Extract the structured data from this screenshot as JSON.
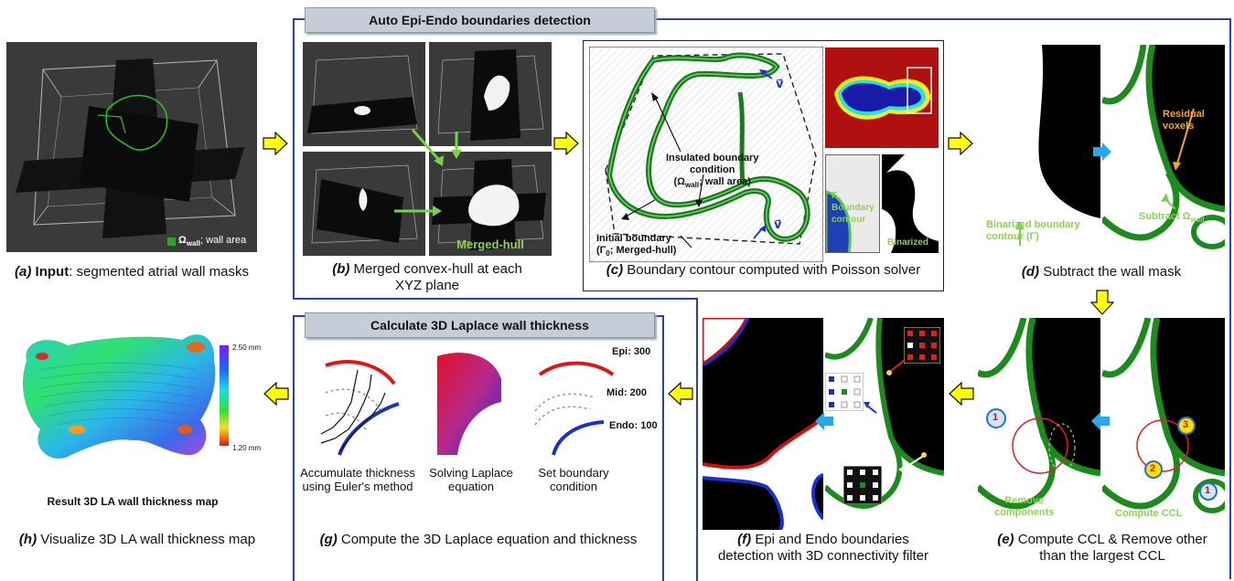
{
  "panel_a": {
    "caption_letter": "(a)",
    "caption_bold": "Input",
    "caption_rest": ": segmented atrial wall masks",
    "legend": "Ω",
    "legend_sub": "wall",
    "legend_rest": "; wall area"
  },
  "banner_top": "Auto Epi-Endo boundaries detection",
  "panel_b": {
    "caption_letter": "(b)",
    "caption_rest": " Merged convex-hull at each",
    "caption_line2": "XYZ plane",
    "merged_label": "Merged-hull"
  },
  "panel_c": {
    "caption_letter": "(c)",
    "caption_rest": " Boundary contour computed with Poisson solver",
    "insulated_1": "Insulated boundary",
    "insulated_2": "condition",
    "insulated_3": "(Ω",
    "insulated_3_sub": "wall",
    "insulated_3_rest": "; wall area)",
    "initial_1": "Initial boundary",
    "initial_2": "(Γ",
    "initial_2_sub": "0",
    "initial_2_rest": "; Merged-hull)",
    "gamma_label_1": "Γ, Boundary",
    "gamma_label_2": "contour",
    "binarized": "Binarized",
    "v1": "v⃗",
    "v2": "v⃗"
  },
  "panel_d": {
    "caption_letter": "(d)",
    "caption_rest": " Subtract the wall mask",
    "residual": "Residual voxels",
    "binarized_1": "Binarized boundary",
    "binarized_2": "contour (Γ)",
    "subtract": "Subtract Ω",
    "subtract_sub": "wall"
  },
  "panel_e": {
    "caption_letter": "(e)",
    "caption_rest": " Compute CCL & Remove other",
    "caption_line2": "than the largest CCL",
    "remove_1": "Remove",
    "remove_2": "components",
    "compute": "Compute CCL",
    "n1": "1",
    "n2": "2",
    "n3": "3",
    "n1b": "1"
  },
  "panel_f": {
    "caption_letter": "(f)",
    "caption_rest": " Epi and Endo boundaries",
    "caption_line2": "detection with 3D connectivity filter"
  },
  "banner_bottom": "Calculate 3D Laplace wall thickness",
  "panel_g": {
    "caption_letter": "(g)",
    "caption_rest": " Compute the 3D Laplace equation and thickness",
    "sub1_1": "Accumulate thickness",
    "sub1_2": "using Euler's method",
    "sub2_1": "Solving Laplace",
    "sub2_2": "equation",
    "sub3_1": "Set boundary",
    "sub3_2": "condition",
    "epi": "Epi: 300",
    "mid": "Mid: 200",
    "endo": "Endo: 100"
  },
  "panel_h": {
    "caption_letter": "(h)",
    "caption_rest": " Visualize 3D LA wall thickness map",
    "result": "Result 3D LA wall thickness map",
    "scale_top": "2.50 mm",
    "scale_bottom": "1.20 mm"
  },
  "colors": {
    "frame": "#2b3fb3",
    "arrow_yellow": "#ffff00",
    "arrow_blue": "#2aa7e8",
    "wall_green": "#2e8b2e",
    "label_green": "#8fd14f",
    "orange": "#f5a623"
  }
}
